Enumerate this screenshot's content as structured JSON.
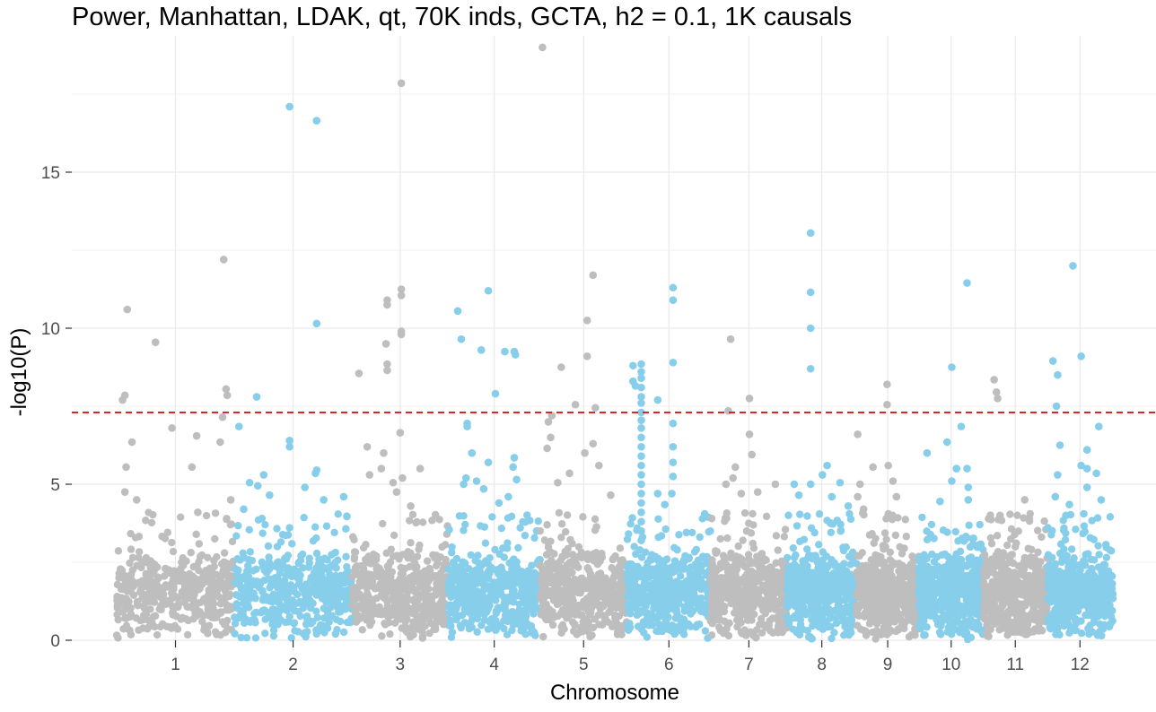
{
  "chart_data": {
    "type": "scatter",
    "subtype": "manhattan",
    "title": "Power, Manhattan, LDAK, qt, 70K inds, GCTA, h2 = 0.1, 1K causals",
    "xlabel": "Chromosome",
    "ylabel": "-log10(P)",
    "ylim": [
      0,
      19
    ],
    "yticks": [
      0,
      5,
      10,
      15
    ],
    "grid": true,
    "legend": "none",
    "colors": {
      "odd_chromosome": "#bebebe",
      "even_chromosome": "#87ceeb",
      "threshold_line": "#d7191c",
      "grid": "#ebebeb"
    },
    "threshold": {
      "y": 7.3,
      "style": "dashed"
    },
    "chromosomes": [
      {
        "label": "1",
        "start": 0,
        "end": 1.0
      },
      {
        "label": "2",
        "start": 1.0,
        "end": 2.0
      },
      {
        "label": "3",
        "start": 2.0,
        "end": 2.82
      },
      {
        "label": "4",
        "start": 2.82,
        "end": 3.6
      },
      {
        "label": "5",
        "start": 3.6,
        "end": 4.34
      },
      {
        "label": "6",
        "start": 4.34,
        "end": 5.05
      },
      {
        "label": "7",
        "start": 5.05,
        "end": 5.7
      },
      {
        "label": "8",
        "start": 5.7,
        "end": 6.29
      },
      {
        "label": "9",
        "start": 6.29,
        "end": 6.82
      },
      {
        "label": "10",
        "start": 6.82,
        "end": 7.37
      },
      {
        "label": "11",
        "start": 7.37,
        "end": 7.91
      },
      {
        "label": "12",
        "start": 7.91,
        "end": 8.47
      }
    ],
    "noise_band": {
      "y_min": 0,
      "y_max": 2.9,
      "dense_points_per_chromosome": 420
    },
    "points": [
      {
        "chr": "1",
        "x": 0.05,
        "y": 7.7
      },
      {
        "chr": "1",
        "x": 0.07,
        "y": 7.85
      },
      {
        "chr": "1",
        "x": 0.09,
        "y": 10.6
      },
      {
        "chr": "1",
        "x": 0.13,
        "y": 6.35
      },
      {
        "chr": "1",
        "x": 0.08,
        "y": 5.55
      },
      {
        "chr": "1",
        "x": 0.33,
        "y": 9.55
      },
      {
        "chr": "1",
        "x": 0.47,
        "y": 6.8
      },
      {
        "chr": "1",
        "x": 0.07,
        "y": 4.75
      },
      {
        "chr": "1",
        "x": 0.17,
        "y": 4.5
      },
      {
        "chr": "1",
        "x": 0.68,
        "y": 6.55
      },
      {
        "chr": "1",
        "x": 0.64,
        "y": 5.55
      },
      {
        "chr": "1",
        "x": 0.69,
        "y": 4.1
      },
      {
        "chr": "1",
        "x": 0.91,
        "y": 12.2
      },
      {
        "chr": "1",
        "x": 0.93,
        "y": 8.05
      },
      {
        "chr": "1",
        "x": 0.94,
        "y": 7.85
      },
      {
        "chr": "1",
        "x": 0.9,
        "y": 7.15
      },
      {
        "chr": "1",
        "x": 0.88,
        "y": 6.35
      },
      {
        "chr": "1",
        "x": 0.97,
        "y": 4.5
      },
      {
        "chr": "2",
        "x": 1.04,
        "y": 6.85
      },
      {
        "chr": "2",
        "x": 1.19,
        "y": 7.8
      },
      {
        "chr": "2",
        "x": 1.47,
        "y": 17.1
      },
      {
        "chr": "2",
        "x": 1.47,
        "y": 6.4
      },
      {
        "chr": "2",
        "x": 1.47,
        "y": 6.2
      },
      {
        "chr": "2",
        "x": 1.6,
        "y": 4.9
      },
      {
        "chr": "2",
        "x": 1.7,
        "y": 16.65
      },
      {
        "chr": "2",
        "x": 1.7,
        "y": 10.15
      },
      {
        "chr": "2",
        "x": 1.7,
        "y": 5.45
      },
      {
        "chr": "2",
        "x": 1.69,
        "y": 5.35
      },
      {
        "chr": "2",
        "x": 1.76,
        "y": 4.5
      },
      {
        "chr": "2",
        "x": 1.93,
        "y": 4.6
      },
      {
        "chr": "2",
        "x": 1.2,
        "y": 4.95
      },
      {
        "chr": "2",
        "x": 1.13,
        "y": 5.05
      },
      {
        "chr": "2",
        "x": 1.25,
        "y": 5.3
      },
      {
        "chr": "2",
        "x": 1.3,
        "y": 4.65
      },
      {
        "chr": "2",
        "x": 1.08,
        "y": 4.2
      },
      {
        "chr": "3",
        "x": 2.06,
        "y": 8.55
      },
      {
        "chr": "3",
        "x": 2.13,
        "y": 6.2
      },
      {
        "chr": "3",
        "x": 2.15,
        "y": 5.3
      },
      {
        "chr": "3",
        "x": 2.3,
        "y": 10.9
      },
      {
        "chr": "3",
        "x": 2.3,
        "y": 10.75
      },
      {
        "chr": "3",
        "x": 2.29,
        "y": 9.5
      },
      {
        "chr": "3",
        "x": 2.3,
        "y": 8.85
      },
      {
        "chr": "3",
        "x": 2.3,
        "y": 8.65
      },
      {
        "chr": "3",
        "x": 2.27,
        "y": 6.0
      },
      {
        "chr": "3",
        "x": 2.25,
        "y": 5.5
      },
      {
        "chr": "3",
        "x": 2.42,
        "y": 17.85
      },
      {
        "chr": "3",
        "x": 2.42,
        "y": 11.25
      },
      {
        "chr": "3",
        "x": 2.42,
        "y": 11.05
      },
      {
        "chr": "3",
        "x": 2.42,
        "y": 9.9
      },
      {
        "chr": "3",
        "x": 2.42,
        "y": 9.8
      },
      {
        "chr": "3",
        "x": 2.41,
        "y": 6.65
      },
      {
        "chr": "3",
        "x": 2.43,
        "y": 5.2
      },
      {
        "chr": "3",
        "x": 2.35,
        "y": 5.05
      },
      {
        "chr": "3",
        "x": 2.38,
        "y": 4.75
      },
      {
        "chr": "3",
        "x": 2.58,
        "y": 5.5
      },
      {
        "chr": "3",
        "x": 2.5,
        "y": 4.3
      },
      {
        "chr": "4",
        "x": 2.9,
        "y": 10.55
      },
      {
        "chr": "4",
        "x": 2.93,
        "y": 9.65
      },
      {
        "chr": "4",
        "x": 2.98,
        "y": 6.95
      },
      {
        "chr": "4",
        "x": 2.98,
        "y": 6.85
      },
      {
        "chr": "4",
        "x": 3.02,
        "y": 6.0
      },
      {
        "chr": "4",
        "x": 2.95,
        "y": 5.0
      },
      {
        "chr": "4",
        "x": 2.97,
        "y": 5.2
      },
      {
        "chr": "4",
        "x": 3.1,
        "y": 9.3
      },
      {
        "chr": "4",
        "x": 3.16,
        "y": 11.2
      },
      {
        "chr": "4",
        "x": 3.22,
        "y": 7.9
      },
      {
        "chr": "4",
        "x": 3.16,
        "y": 5.7
      },
      {
        "chr": "4",
        "x": 3.06,
        "y": 5.1
      },
      {
        "chr": "4",
        "x": 3.12,
        "y": 4.85
      },
      {
        "chr": "4",
        "x": 3.3,
        "y": 9.25
      },
      {
        "chr": "4",
        "x": 3.38,
        "y": 9.25
      },
      {
        "chr": "4",
        "x": 3.39,
        "y": 9.15
      },
      {
        "chr": "4",
        "x": 3.38,
        "y": 5.85
      },
      {
        "chr": "4",
        "x": 3.37,
        "y": 5.55
      },
      {
        "chr": "4",
        "x": 3.4,
        "y": 5.15
      },
      {
        "chr": "4",
        "x": 3.25,
        "y": 4.4
      },
      {
        "chr": "4",
        "x": 3.33,
        "y": 4.6
      },
      {
        "chr": "5",
        "x": 3.62,
        "y": 19.0
      },
      {
        "chr": "5",
        "x": 3.78,
        "y": 8.75
      },
      {
        "chr": "5",
        "x": 3.7,
        "y": 7.2
      },
      {
        "chr": "5",
        "x": 3.67,
        "y": 7.0
      },
      {
        "chr": "5",
        "x": 3.69,
        "y": 6.5
      },
      {
        "chr": "5",
        "x": 3.66,
        "y": 6.15
      },
      {
        "chr": "5",
        "x": 3.9,
        "y": 7.55
      },
      {
        "chr": "5",
        "x": 4.0,
        "y": 10.25
      },
      {
        "chr": "5",
        "x": 4.0,
        "y": 9.1
      },
      {
        "chr": "5",
        "x": 4.05,
        "y": 11.7
      },
      {
        "chr": "5",
        "x": 4.07,
        "y": 7.45
      },
      {
        "chr": "5",
        "x": 4.05,
        "y": 6.3
      },
      {
        "chr": "5",
        "x": 3.98,
        "y": 6.0
      },
      {
        "chr": "5",
        "x": 4.1,
        "y": 5.6
      },
      {
        "chr": "5",
        "x": 3.75,
        "y": 5.05
      },
      {
        "chr": "5",
        "x": 3.85,
        "y": 5.35
      },
      {
        "chr": "5",
        "x": 4.2,
        "y": 4.65
      },
      {
        "chr": "6",
        "x": 4.39,
        "y": 8.8
      },
      {
        "chr": "6",
        "x": 4.39,
        "y": 8.3
      },
      {
        "chr": "6",
        "x": 4.41,
        "y": 8.15
      },
      {
        "chr": "6",
        "x": 4.46,
        "y": 8.85
      },
      {
        "chr": "6",
        "x": 4.46,
        "y": 8.6
      },
      {
        "chr": "6",
        "x": 4.46,
        "y": 8.4
      },
      {
        "chr": "6",
        "x": 4.46,
        "y": 8.1
      },
      {
        "chr": "6",
        "x": 4.46,
        "y": 7.8
      },
      {
        "chr": "6",
        "x": 4.46,
        "y": 7.6
      },
      {
        "chr": "6",
        "x": 4.46,
        "y": 7.3
      },
      {
        "chr": "6",
        "x": 4.46,
        "y": 7.05
      },
      {
        "chr": "6",
        "x": 4.46,
        "y": 6.8
      },
      {
        "chr": "6",
        "x": 4.46,
        "y": 6.5
      },
      {
        "chr": "6",
        "x": 4.46,
        "y": 6.2
      },
      {
        "chr": "6",
        "x": 4.46,
        "y": 5.9
      },
      {
        "chr": "6",
        "x": 4.46,
        "y": 5.6
      },
      {
        "chr": "6",
        "x": 4.46,
        "y": 5.3
      },
      {
        "chr": "6",
        "x": 4.46,
        "y": 5.0
      },
      {
        "chr": "6",
        "x": 4.46,
        "y": 4.7
      },
      {
        "chr": "6",
        "x": 4.46,
        "y": 4.4
      },
      {
        "chr": "6",
        "x": 4.46,
        "y": 4.1
      },
      {
        "chr": "6",
        "x": 4.46,
        "y": 3.8
      },
      {
        "chr": "6",
        "x": 4.46,
        "y": 3.5
      },
      {
        "chr": "6",
        "x": 4.46,
        "y": 3.2
      },
      {
        "chr": "6",
        "x": 4.6,
        "y": 7.7
      },
      {
        "chr": "6",
        "x": 4.6,
        "y": 4.7
      },
      {
        "chr": "6",
        "x": 4.73,
        "y": 11.3
      },
      {
        "chr": "6",
        "x": 4.73,
        "y": 10.9
      },
      {
        "chr": "6",
        "x": 4.73,
        "y": 8.9
      },
      {
        "chr": "6",
        "x": 4.73,
        "y": 6.95
      },
      {
        "chr": "6",
        "x": 4.73,
        "y": 6.2
      },
      {
        "chr": "6",
        "x": 4.73,
        "y": 5.7
      },
      {
        "chr": "6",
        "x": 4.73,
        "y": 5.25
      },
      {
        "chr": "6",
        "x": 4.72,
        "y": 4.7
      },
      {
        "chr": "6",
        "x": 4.66,
        "y": 4.35
      },
      {
        "chr": "7",
        "x": 5.22,
        "y": 9.65
      },
      {
        "chr": "7",
        "x": 5.2,
        "y": 7.35
      },
      {
        "chr": "7",
        "x": 5.38,
        "y": 7.75
      },
      {
        "chr": "7",
        "x": 5.38,
        "y": 6.6
      },
      {
        "chr": "7",
        "x": 5.4,
        "y": 5.95
      },
      {
        "chr": "7",
        "x": 5.26,
        "y": 5.55
      },
      {
        "chr": "7",
        "x": 5.24,
        "y": 5.2
      },
      {
        "chr": "7",
        "x": 5.18,
        "y": 5.0
      },
      {
        "chr": "7",
        "x": 5.31,
        "y": 4.7
      },
      {
        "chr": "7",
        "x": 5.45,
        "y": 4.75
      },
      {
        "chr": "7",
        "x": 5.6,
        "y": 5.0
      },
      {
        "chr": "8",
        "x": 5.9,
        "y": 13.05
      },
      {
        "chr": "8",
        "x": 5.9,
        "y": 11.15
      },
      {
        "chr": "8",
        "x": 5.9,
        "y": 10.0
      },
      {
        "chr": "8",
        "x": 5.9,
        "y": 8.7
      },
      {
        "chr": "8",
        "x": 5.9,
        "y": 5.0
      },
      {
        "chr": "8",
        "x": 6.0,
        "y": 5.3
      },
      {
        "chr": "8",
        "x": 6.04,
        "y": 5.6
      },
      {
        "chr": "8",
        "x": 6.08,
        "y": 4.6
      },
      {
        "chr": "8",
        "x": 6.15,
        "y": 5.05
      },
      {
        "chr": "8",
        "x": 6.22,
        "y": 4.3
      },
      {
        "chr": "8",
        "x": 5.76,
        "y": 5.0
      },
      {
        "chr": "8",
        "x": 5.8,
        "y": 4.65
      },
      {
        "chr": "9",
        "x": 6.3,
        "y": 6.6
      },
      {
        "chr": "9",
        "x": 6.32,
        "y": 5.0
      },
      {
        "chr": "9",
        "x": 6.3,
        "y": 4.6
      },
      {
        "chr": "9",
        "x": 6.35,
        "y": 4.2
      },
      {
        "chr": "9",
        "x": 6.43,
        "y": 5.55
      },
      {
        "chr": "9",
        "x": 6.55,
        "y": 8.2
      },
      {
        "chr": "9",
        "x": 6.55,
        "y": 7.55
      },
      {
        "chr": "9",
        "x": 6.56,
        "y": 5.6
      },
      {
        "chr": "9",
        "x": 6.6,
        "y": 5.1
      },
      {
        "chr": "9",
        "x": 6.63,
        "y": 4.6
      },
      {
        "chr": "10",
        "x": 6.89,
        "y": 6.0
      },
      {
        "chr": "10",
        "x": 7.06,
        "y": 6.35
      },
      {
        "chr": "10",
        "x": 7.1,
        "y": 8.75
      },
      {
        "chr": "10",
        "x": 7.1,
        "y": 5.1
      },
      {
        "chr": "10",
        "x": 7.14,
        "y": 5.5
      },
      {
        "chr": "10",
        "x": 7.18,
        "y": 6.85
      },
      {
        "chr": "10",
        "x": 7.23,
        "y": 11.45
      },
      {
        "chr": "10",
        "x": 7.23,
        "y": 5.5
      },
      {
        "chr": "10",
        "x": 7.24,
        "y": 4.9
      },
      {
        "chr": "10",
        "x": 7.24,
        "y": 4.5
      },
      {
        "chr": "10",
        "x": 7.0,
        "y": 4.45
      },
      {
        "chr": "11",
        "x": 7.46,
        "y": 8.35
      },
      {
        "chr": "11",
        "x": 7.48,
        "y": 7.95
      },
      {
        "chr": "11",
        "x": 7.49,
        "y": 7.75
      },
      {
        "chr": "11",
        "x": 7.51,
        "y": 4.0
      },
      {
        "chr": "11",
        "x": 7.72,
        "y": 4.5
      },
      {
        "chr": "11",
        "x": 7.76,
        "y": 3.9
      },
      {
        "chr": "12",
        "x": 7.96,
        "y": 8.95
      },
      {
        "chr": "12",
        "x": 8.0,
        "y": 8.5
      },
      {
        "chr": "12",
        "x": 7.99,
        "y": 7.5
      },
      {
        "chr": "12",
        "x": 8.0,
        "y": 5.3
      },
      {
        "chr": "12",
        "x": 8.02,
        "y": 6.25
      },
      {
        "chr": "12",
        "x": 7.98,
        "y": 4.6
      },
      {
        "chr": "12",
        "x": 8.13,
        "y": 12.0
      },
      {
        "chr": "12",
        "x": 8.2,
        "y": 9.1
      },
      {
        "chr": "12",
        "x": 8.25,
        "y": 6.1
      },
      {
        "chr": "12",
        "x": 8.2,
        "y": 5.6
      },
      {
        "chr": "12",
        "x": 8.25,
        "y": 5.5
      },
      {
        "chr": "12",
        "x": 8.25,
        "y": 4.9
      },
      {
        "chr": "12",
        "x": 8.35,
        "y": 6.85
      },
      {
        "chr": "12",
        "x": 8.33,
        "y": 5.35
      },
      {
        "chr": "12",
        "x": 8.37,
        "y": 4.5
      },
      {
        "chr": "12",
        "x": 8.1,
        "y": 4.35
      },
      {
        "chr": "12",
        "x": 8.07,
        "y": 4.0
      }
    ]
  }
}
